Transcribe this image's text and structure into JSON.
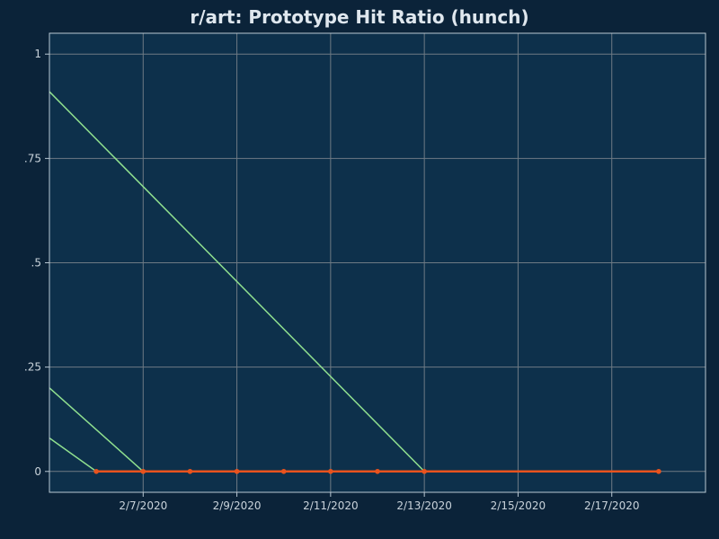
{
  "chart_data": {
    "type": "line",
    "title": "r/art: Prototype Hit Ratio (hunch)",
    "xlabel": "",
    "ylabel": "",
    "x_domain": [
      "2020-02-05",
      "2020-02-19"
    ],
    "ylim": [
      -0.05,
      1.05
    ],
    "yticks": [
      0,
      0.25,
      0.5,
      0.75,
      1
    ],
    "ytick_labels": [
      "0",
      ".25",
      ".5",
      ".75",
      "1"
    ],
    "xticks": [
      "2020-02-07",
      "2020-02-09",
      "2020-02-11",
      "2020-02-13",
      "2020-02-15",
      "2020-02-17"
    ],
    "xtick_labels": [
      "2/7/2020",
      "2/9/2020",
      "2/11/2020",
      "2/13/2020",
      "2/15/2020",
      "2/17/2020"
    ],
    "grid": true,
    "series": [
      {
        "color": "#e8531e",
        "markers": true,
        "points": [
          {
            "x": "2020-02-06",
            "y": 0
          },
          {
            "x": "2020-02-07",
            "y": 0
          },
          {
            "x": "2020-02-08",
            "y": 0
          },
          {
            "x": "2020-02-09",
            "y": 0
          },
          {
            "x": "2020-02-10",
            "y": 0
          },
          {
            "x": "2020-02-11",
            "y": 0
          },
          {
            "x": "2020-02-12",
            "y": 0
          },
          {
            "x": "2020-02-13",
            "y": 0
          },
          {
            "x": "2020-02-18",
            "y": 0
          }
        ]
      }
    ],
    "trend_lines": [
      {
        "color": "#90e08f",
        "from": {
          "x": "2020-02-05",
          "y": 0.91
        },
        "to": {
          "x": "2020-02-13",
          "y": 0
        }
      },
      {
        "color": "#90e08f",
        "from": {
          "x": "2020-02-05",
          "y": 0.2
        },
        "to": {
          "x": "2020-02-07",
          "y": 0
        }
      },
      {
        "color": "#90e08f",
        "from": {
          "x": "2020-02-05",
          "y": 0.08
        },
        "to": {
          "x": "2020-02-06",
          "y": 0
        }
      }
    ],
    "colors": {
      "background": "#0c2640",
      "plot_background": "#0d304b",
      "grid": "#6e7a84",
      "axis": "#b9c8d3"
    }
  }
}
